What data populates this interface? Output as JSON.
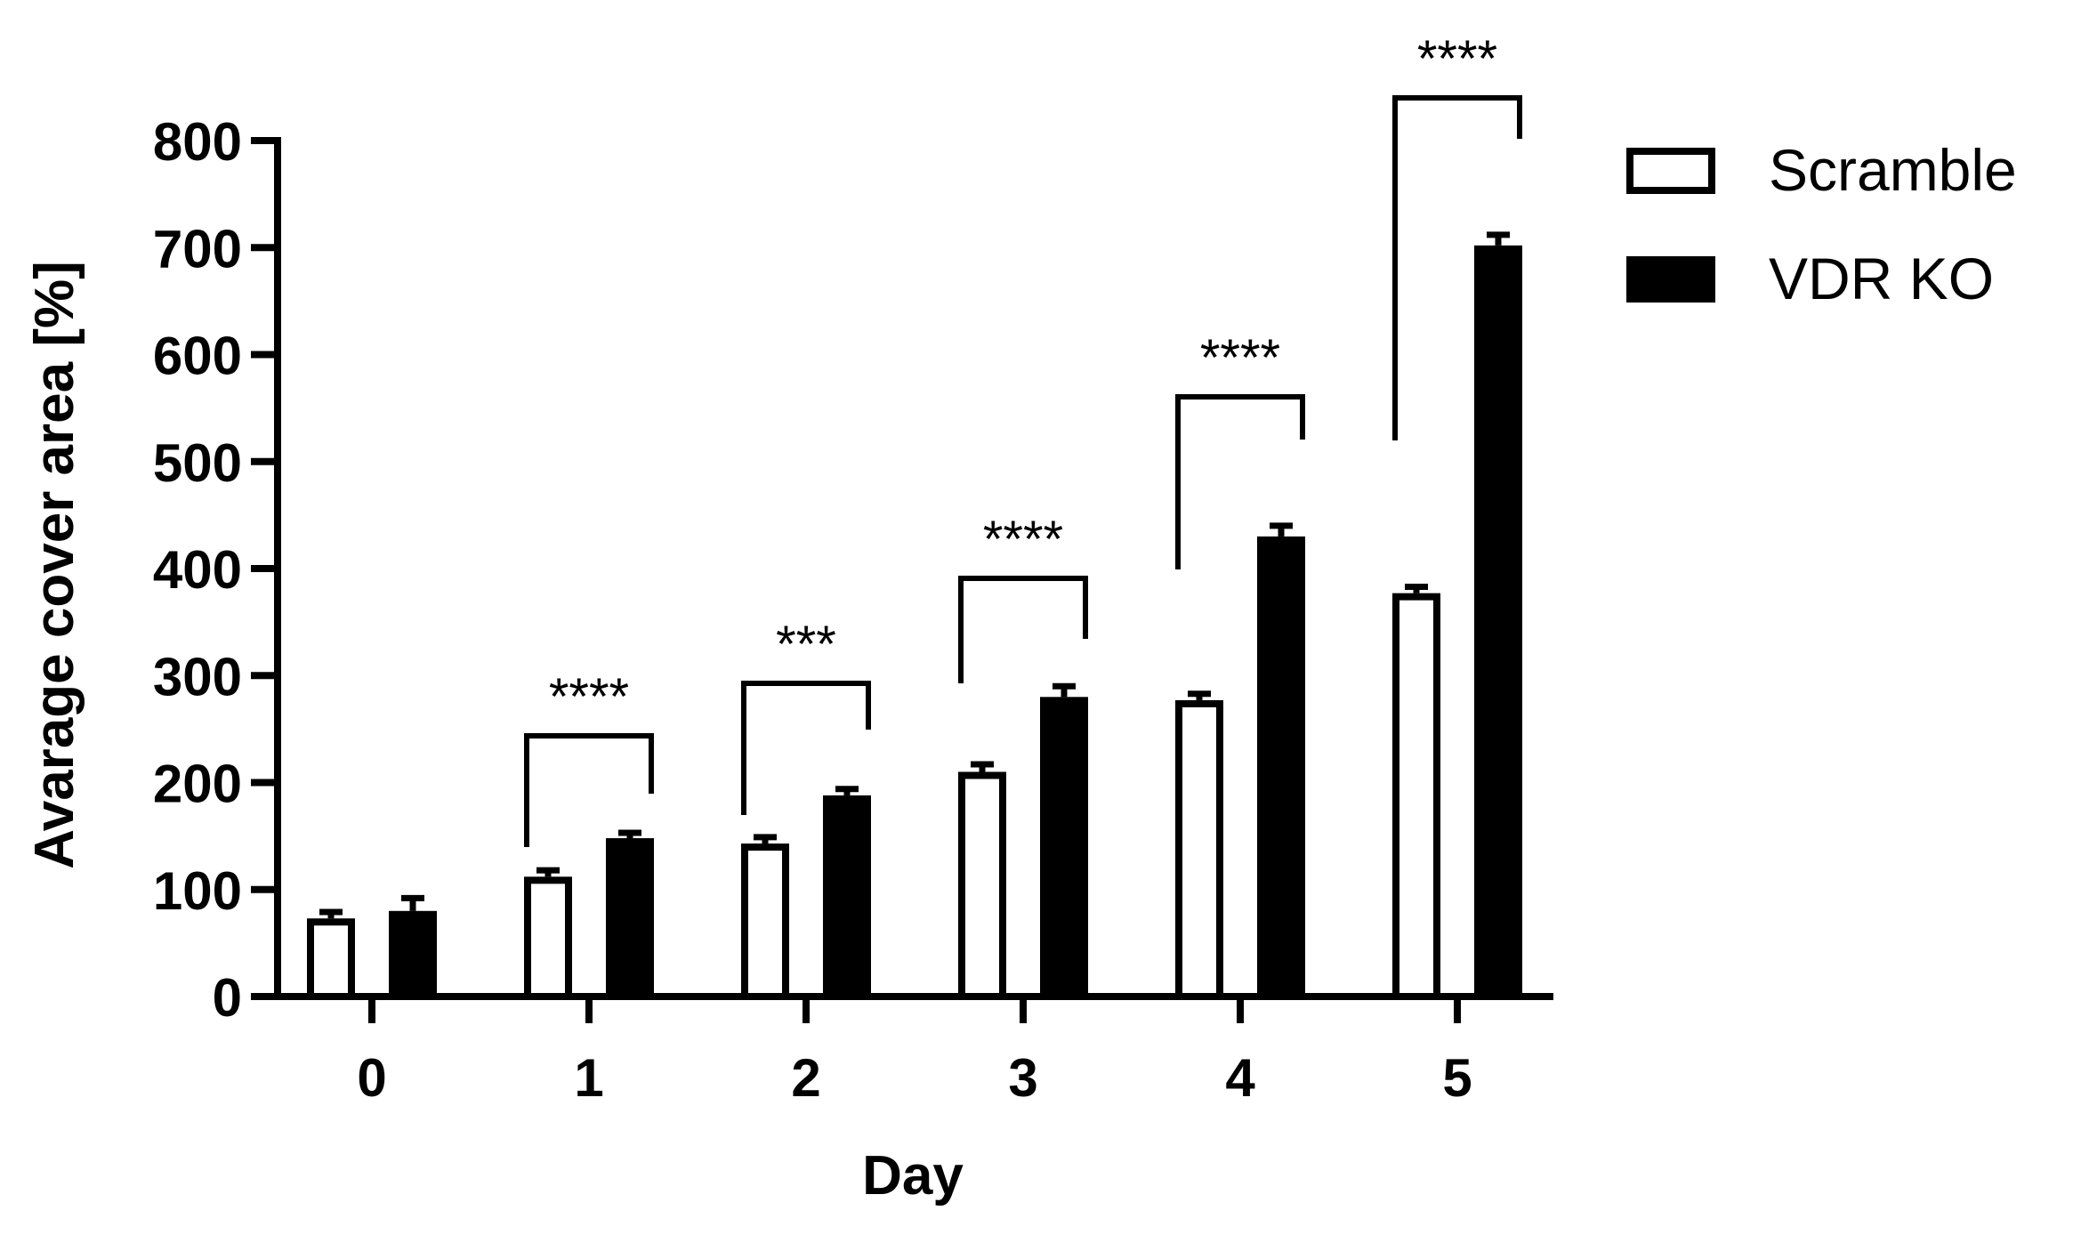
{
  "chart_data": {
    "type": "bar",
    "title": "",
    "xlabel": "Day",
    "ylabel": "Avarage cover area [%]",
    "categories": [
      "0",
      "1",
      "2",
      "3",
      "4",
      "5"
    ],
    "ylim": [
      0,
      800
    ],
    "yticks": [
      "0",
      "100",
      "200",
      "300",
      "400",
      "500",
      "600",
      "700",
      "800"
    ],
    "grid": false,
    "legend_position": "top-right",
    "series": [
      {
        "name": "Scramble",
        "style": "hollow",
        "color": "#000000",
        "fill": "#ffffff",
        "values": [
          73,
          112,
          143,
          210,
          277,
          377
        ],
        "errors": [
          6,
          6,
          6,
          7,
          6,
          6
        ]
      },
      {
        "name": "VDR KO",
        "style": "filled",
        "color": "#000000",
        "fill": "#000000",
        "values": [
          80,
          148,
          188,
          280,
          430,
          702
        ],
        "errors": [
          12,
          5,
          6,
          10,
          10,
          10
        ]
      }
    ],
    "significance": [
      {
        "category": "1",
        "label": "****"
      },
      {
        "category": "2",
        "label": "***"
      },
      {
        "category": "3",
        "label": "****"
      },
      {
        "category": "4",
        "label": "****"
      },
      {
        "category": "5",
        "label": "****"
      }
    ]
  }
}
